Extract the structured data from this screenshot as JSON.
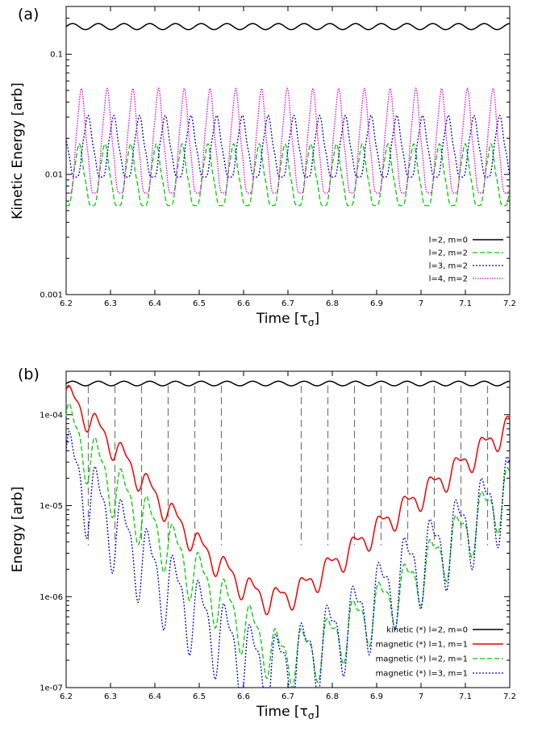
{
  "chart_data": [
    {
      "panel_label": "(a)",
      "type": "line",
      "xlabel": "Time",
      "xunit_main": "τ",
      "xunit_sub": "σ",
      "ylabel": "Kinetic Energy [arb]",
      "xlim": [
        6.2,
        7.2
      ],
      "ylim": [
        0.001,
        0.25
      ],
      "yscale": "log",
      "xticks": [
        "6.2",
        "6.3",
        "6.4",
        "6.5",
        "6.6",
        "6.7",
        "6.8",
        "6.9",
        "7",
        "7.1",
        "7.2"
      ],
      "yticks": [
        {
          "value": 0.1,
          "label": "0.1"
        },
        {
          "value": 0.01,
          "label": "0.01"
        },
        {
          "value": 0.001,
          "label": "0.001"
        }
      ],
      "grid": false,
      "legend_position": "bottom-right",
      "series": [
        {
          "name": "l=2, m=0",
          "color": "#000000",
          "dash": "solid",
          "shape": "wave",
          "base": 0.17,
          "amp": 0.07,
          "period": 0.058,
          "phase": 0.0
        },
        {
          "name": "l=2, m=2",
          "color": "#00cc00",
          "dash": "dashed",
          "shape": "spiky",
          "min": 0.0055,
          "max": 0.018,
          "period": 0.058,
          "phase": 0.015
        },
        {
          "name": "l=3, m=2",
          "color": "#0000cc",
          "dash": "dotted",
          "shape": "spiky",
          "min": 0.0095,
          "max": 0.031,
          "period": 0.058,
          "phase": 0.035
        },
        {
          "name": "l=4, m=2",
          "color": "#e000e0",
          "dash": "dotted-fine",
          "shape": "spiky",
          "min": 0.007,
          "max": 0.052,
          "period": 0.058,
          "phase": 0.02
        }
      ]
    },
    {
      "panel_label": "(b)",
      "type": "line",
      "xlabel": "Time",
      "xunit_main": "τ",
      "xunit_sub": "σ",
      "ylabel": "Energy [arb]",
      "xlim": [
        6.2,
        7.2
      ],
      "ylim": [
        1e-07,
        0.0003
      ],
      "yscale": "log",
      "xticks": [
        "6.2",
        "6.3",
        "6.4",
        "6.5",
        "6.6",
        "6.7",
        "6.8",
        "6.9",
        "7",
        "7.1",
        "7.2"
      ],
      "yticks": [
        {
          "value": 0.0001,
          "label": "1e-04"
        },
        {
          "value": 1e-05,
          "label": "1e-05"
        },
        {
          "value": 1e-06,
          "label": "1e-06"
        },
        {
          "value": 1e-07,
          "label": "1e-07"
        }
      ],
      "grid": false,
      "legend_position": "bottom-right",
      "vlines": [
        6.25,
        6.31,
        6.37,
        6.43,
        6.49,
        6.55,
        6.73,
        6.79,
        6.85,
        6.91,
        6.97,
        7.03,
        7.09,
        7.15
      ],
      "series": [
        {
          "name": "kinetic (*) l=2, m=0",
          "color": "#000000",
          "dash": "solid",
          "shape": "wave_top",
          "base": 0.00022,
          "amp": 0.06,
          "period": 0.058
        },
        {
          "name": "magnetic (*) l=1, m=1",
          "color": "#ee0000",
          "dash": "solid",
          "shape": "trend",
          "points": [
            [
              6.2,
              0.00017
            ],
            [
              6.3,
              5e-05
            ],
            [
              6.4,
              1.3e-05
            ],
            [
              6.5,
              3.6e-06
            ],
            [
              6.6,
              1.3e-06
            ],
            [
              6.66,
              9e-07
            ],
            [
              6.72,
              1.1e-06
            ],
            [
              6.8,
              2.2e-06
            ],
            [
              6.9,
              5.5e-06
            ],
            [
              7.0,
              1.3e-05
            ],
            [
              7.1,
              3e-05
            ],
            [
              7.2,
              7.5e-05
            ]
          ],
          "wiggle": 0.18,
          "period": 0.058
        },
        {
          "name": "magnetic (*) l=2, m=1",
          "color": "#00cc00",
          "dash": "dashed",
          "shape": "trend",
          "points": [
            [
              6.2,
              8e-05
            ],
            [
              6.3,
              1.8e-05
            ],
            [
              6.4,
              5.5e-06
            ],
            [
              6.5,
              1.6e-06
            ],
            [
              6.6,
              5e-07
            ],
            [
              6.68,
              2.2e-07
            ],
            [
              6.76,
              2.5e-07
            ],
            [
              6.86,
              5.5e-07
            ],
            [
              6.96,
              1.2e-06
            ],
            [
              7.06,
              3.5e-06
            ],
            [
              7.2,
              1.5e-05
            ]
          ],
          "wiggle": 0.38,
          "period": 0.058
        },
        {
          "name": "magnetic (*) l=3, m=1",
          "color": "#0000cc",
          "dash": "dotted",
          "shape": "trend",
          "points": [
            [
              6.2,
              3e-05
            ],
            [
              6.3,
              6.5e-06
            ],
            [
              6.4,
              1.8e-06
            ],
            [
              6.5,
              6e-07
            ],
            [
              6.6,
              2.2e-07
            ],
            [
              6.66,
              1.5e-07
            ],
            [
              6.74,
              2.2e-07
            ],
            [
              6.86,
              6e-07
            ],
            [
              6.96,
              1.8e-06
            ],
            [
              7.06,
              4e-06
            ],
            [
              7.2,
              1.5e-05
            ]
          ],
          "wiggle": 0.55,
          "period": 0.058
        }
      ]
    }
  ]
}
